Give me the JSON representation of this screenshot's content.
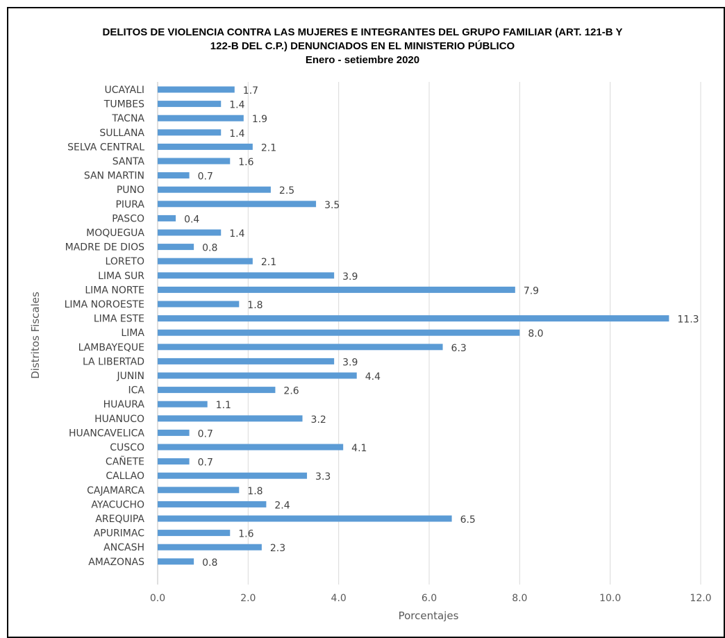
{
  "chart_data": {
    "type": "bar",
    "orientation": "horizontal",
    "title": "DELITOS DE VIOLENCIA CONTRA LAS MUJERES E INTEGRANTES DEL GRUPO FAMILIAR (ART. 121-B Y 122-B DEL C.P.) DENUNCIADOS EN EL MINISTERIO PÚBLICO",
    "title_lines": [
      "DELITOS DE VIOLENCIA CONTRA LAS MUJERES E INTEGRANTES DEL GRUPO FAMILIAR (ART. 121-B Y",
      "122-B DEL C.P.) DENUNCIADOS EN EL MINISTERIO PÚBLICO"
    ],
    "subtitle": "Enero - setiembre 2020",
    "xlabel": "Porcentajes",
    "ylabel": "Distritos Fiscales",
    "xlim": [
      0,
      12
    ],
    "x_ticks": [
      "0.0",
      "2.0",
      "4.0",
      "6.0",
      "8.0",
      "10.0",
      "12.0"
    ],
    "grid": "vertical",
    "bar_color": "#5B9BD5",
    "categories": [
      "UCAYALI",
      "TUMBES",
      "TACNA",
      "SULLANA",
      "SELVA CENTRAL",
      "SANTA",
      "SAN MARTIN",
      "PUNO",
      "PIURA",
      "PASCO",
      "MOQUEGUA",
      "MADRE DE DIOS",
      "LORETO",
      "LIMA SUR",
      "LIMA NORTE",
      "LIMA NOROESTE",
      "LIMA ESTE",
      "LIMA",
      "LAMBAYEQUE",
      "LA LIBERTAD",
      "JUNIN",
      "ICA",
      "HUAURA",
      "HUANUCO",
      "HUANCAVELICA",
      "CUSCO",
      "CAÑETE",
      "CALLAO",
      "CAJAMARCA",
      "AYACUCHO",
      "AREQUIPA",
      "APURIMAC",
      "ANCASH",
      "AMAZONAS"
    ],
    "values": [
      1.7,
      1.4,
      1.9,
      1.4,
      2.1,
      1.6,
      0.7,
      2.5,
      3.5,
      0.4,
      1.4,
      0.8,
      2.1,
      3.9,
      7.9,
      1.8,
      11.3,
      8.0,
      6.3,
      3.9,
      4.4,
      2.6,
      1.1,
      3.2,
      0.7,
      4.1,
      0.7,
      3.3,
      1.8,
      2.4,
      6.5,
      1.6,
      2.3,
      0.8
    ],
    "value_labels": [
      "1.7",
      "1.4",
      "1.9",
      "1.4",
      "2.1",
      "1.6",
      "0.7",
      "2.5",
      "3.5",
      "0.4",
      "1.4",
      "0.8",
      "2.1",
      "3.9",
      "7.9",
      "1.8",
      "11.3",
      "8.0",
      "6.3",
      "3.9",
      "4.4",
      "2.6",
      "1.1",
      "3.2",
      "0.7",
      "4.1",
      "0.7",
      "3.3",
      "1.8",
      "2.4",
      "6.5",
      "1.6",
      "2.3",
      "0.8"
    ]
  }
}
